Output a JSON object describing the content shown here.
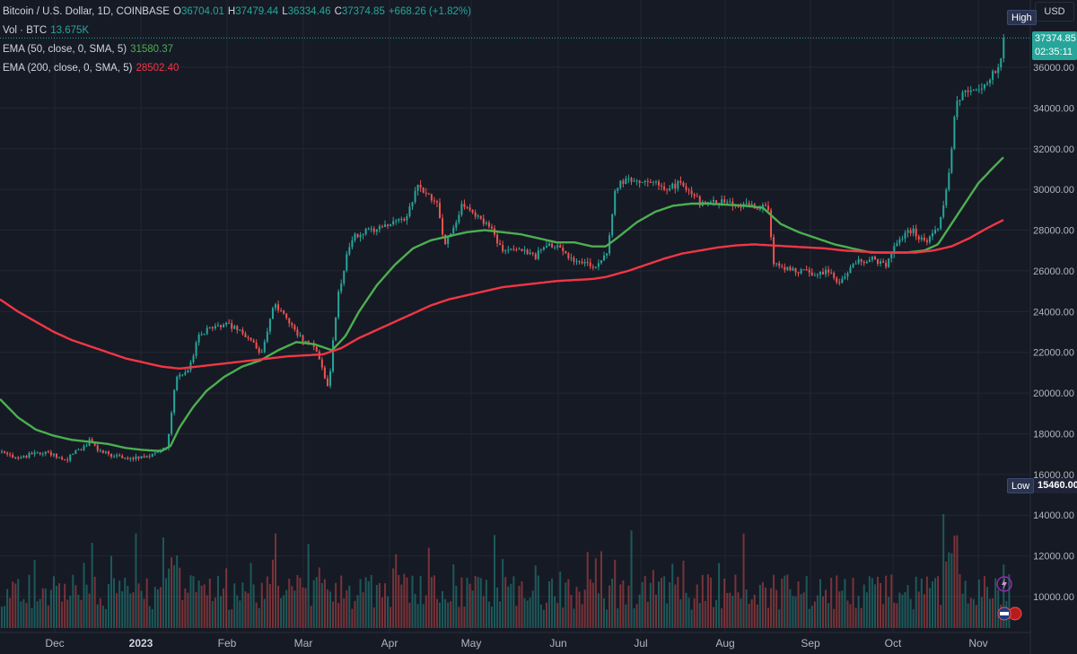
{
  "legend": {
    "symbol": "Bitcoin / U.S. Dollar, 1D, COINBASE",
    "o_key": "O",
    "o_val": "36704.01",
    "h_key": "H",
    "h_val": "37479.44",
    "l_key": "L",
    "l_val": "36334.46",
    "c_key": "C",
    "c_val": "37374.85",
    "change": "+668.26 (+1.82%)",
    "vol_label": "Vol · BTC",
    "vol_val": "13.675K",
    "ema50_label": "EMA (50, close, 0, SMA, 5)",
    "ema50_val": "31580.37",
    "ema200_label": "EMA (200, close, 0, SMA, 5)",
    "ema200_val": "28502.40"
  },
  "currency": "USD",
  "tags": {
    "high": "High",
    "low": "Low",
    "low_value": "15460.00",
    "last_price": "37374.85",
    "countdown": "02:35:11"
  },
  "colors": {
    "background": "#161a25",
    "up": "#26a69a",
    "down": "#ef5350",
    "ema50": "#4caf50",
    "ema200": "#f23645",
    "grid": "#232733"
  },
  "chart_data": {
    "type": "candlestick",
    "title": "Bitcoin / U.S. Dollar, 1D, COINBASE",
    "y_ticks": [
      10000,
      12000,
      14000,
      16000,
      18000,
      20000,
      22000,
      24000,
      26000,
      28000,
      30000,
      32000,
      34000,
      36000
    ],
    "y_tick_labels": [
      "10000.00",
      "12000.00",
      "14000.00",
      "16000.00",
      "18000.00",
      "20000.00",
      "22000.00",
      "24000.00",
      "26000.00",
      "28000.00",
      "30000.00",
      "32000.00",
      "34000.00",
      "36000.00"
    ],
    "ylim": [
      8600,
      38100
    ],
    "x_labels": [
      "Dec",
      "2023",
      "Feb",
      "Mar",
      "Apr",
      "May",
      "Jun",
      "Jul",
      "Aug",
      "Sep",
      "Oct",
      "Nov"
    ],
    "x_label_bold": "2023",
    "price_keypoints": [
      [
        0,
        17100
      ],
      [
        10,
        16900
      ],
      [
        20,
        16700
      ],
      [
        30,
        16950
      ],
      [
        40,
        17000
      ],
      [
        50,
        17100
      ],
      [
        60,
        16900
      ],
      [
        70,
        16600
      ],
      [
        80,
        17000
      ],
      [
        90,
        17300
      ],
      [
        100,
        17700
      ],
      [
        110,
        17100
      ],
      [
        130,
        16900
      ],
      [
        150,
        16800
      ],
      [
        170,
        17000
      ],
      [
        185,
        17400
      ],
      [
        195,
        20800
      ],
      [
        210,
        21200
      ],
      [
        220,
        22800
      ],
      [
        240,
        23400
      ],
      [
        255,
        23300
      ],
      [
        275,
        22800
      ],
      [
        290,
        21800
      ],
      [
        305,
        24400
      ],
      [
        320,
        23600
      ],
      [
        335,
        22600
      ],
      [
        350,
        22200
      ],
      [
        365,
        20200
      ],
      [
        375,
        24700
      ],
      [
        390,
        27600
      ],
      [
        410,
        28000
      ],
      [
        430,
        28300
      ],
      [
        450,
        28500
      ],
      [
        465,
        30200
      ],
      [
        485,
        29400
      ],
      [
        495,
        27300
      ],
      [
        515,
        29300
      ],
      [
        530,
        28700
      ],
      [
        545,
        28200
      ],
      [
        560,
        26900
      ],
      [
        575,
        27000
      ],
      [
        595,
        26700
      ],
      [
        610,
        27300
      ],
      [
        625,
        27000
      ],
      [
        640,
        26400
      ],
      [
        660,
        26200
      ],
      [
        675,
        26700
      ],
      [
        685,
        30200
      ],
      [
        700,
        30500
      ],
      [
        720,
        30400
      ],
      [
        740,
        30100
      ],
      [
        760,
        30300
      ],
      [
        780,
        29300
      ],
      [
        800,
        29400
      ],
      [
        820,
        29300
      ],
      [
        840,
        29200
      ],
      [
        855,
        29100
      ],
      [
        860,
        26500
      ],
      [
        875,
        26100
      ],
      [
        890,
        26000
      ],
      [
        905,
        25900
      ],
      [
        920,
        26000
      ],
      [
        935,
        25400
      ],
      [
        950,
        26400
      ],
      [
        970,
        26600
      ],
      [
        985,
        26200
      ],
      [
        1000,
        27600
      ],
      [
        1015,
        28000
      ],
      [
        1030,
        27400
      ],
      [
        1045,
        28200
      ],
      [
        1055,
        30200
      ],
      [
        1065,
        34500
      ],
      [
        1080,
        34800
      ],
      [
        1095,
        35200
      ],
      [
        1110,
        35800
      ],
      [
        1118,
        37400
      ]
    ],
    "ema50_keypoints": [
      [
        0,
        19700
      ],
      [
        20,
        18800
      ],
      [
        40,
        18200
      ],
      [
        60,
        17900
      ],
      [
        80,
        17700
      ],
      [
        100,
        17600
      ],
      [
        120,
        17500
      ],
      [
        140,
        17300
      ],
      [
        160,
        17200
      ],
      [
        180,
        17150
      ],
      [
        190,
        17400
      ],
      [
        200,
        18300
      ],
      [
        215,
        19300
      ],
      [
        230,
        20100
      ],
      [
        250,
        20800
      ],
      [
        270,
        21300
      ],
      [
        290,
        21600
      ],
      [
        310,
        22100
      ],
      [
        330,
        22500
      ],
      [
        350,
        22400
      ],
      [
        370,
        22100
      ],
      [
        385,
        22800
      ],
      [
        400,
        24000
      ],
      [
        420,
        25300
      ],
      [
        440,
        26300
      ],
      [
        460,
        27100
      ],
      [
        480,
        27500
      ],
      [
        500,
        27700
      ],
      [
        520,
        27900
      ],
      [
        540,
        28000
      ],
      [
        560,
        27900
      ],
      [
        580,
        27800
      ],
      [
        600,
        27600
      ],
      [
        620,
        27400
      ],
      [
        640,
        27400
      ],
      [
        660,
        27200
      ],
      [
        675,
        27200
      ],
      [
        690,
        27700
      ],
      [
        710,
        28400
      ],
      [
        730,
        28900
      ],
      [
        750,
        29200
      ],
      [
        770,
        29300
      ],
      [
        790,
        29300
      ],
      [
        810,
        29250
      ],
      [
        830,
        29200
      ],
      [
        850,
        29100
      ],
      [
        870,
        28300
      ],
      [
        890,
        27900
      ],
      [
        910,
        27600
      ],
      [
        930,
        27300
      ],
      [
        950,
        27100
      ],
      [
        970,
        26900
      ],
      [
        990,
        26900
      ],
      [
        1010,
        26900
      ],
      [
        1030,
        27000
      ],
      [
        1045,
        27300
      ],
      [
        1060,
        28300
      ],
      [
        1075,
        29300
      ],
      [
        1090,
        30300
      ],
      [
        1105,
        31000
      ],
      [
        1118,
        31580
      ]
    ],
    "ema200_keypoints": [
      [
        0,
        24600
      ],
      [
        20,
        24000
      ],
      [
        40,
        23500
      ],
      [
        60,
        23000
      ],
      [
        80,
        22600
      ],
      [
        100,
        22300
      ],
      [
        120,
        22000
      ],
      [
        140,
        21700
      ],
      [
        160,
        21500
      ],
      [
        180,
        21300
      ],
      [
        200,
        21200
      ],
      [
        220,
        21300
      ],
      [
        240,
        21400
      ],
      [
        260,
        21500
      ],
      [
        280,
        21600
      ],
      [
        300,
        21700
      ],
      [
        320,
        21800
      ],
      [
        340,
        21850
      ],
      [
        360,
        21900
      ],
      [
        380,
        22200
      ],
      [
        400,
        22700
      ],
      [
        420,
        23100
      ],
      [
        440,
        23500
      ],
      [
        460,
        23900
      ],
      [
        480,
        24300
      ],
      [
        500,
        24600
      ],
      [
        520,
        24800
      ],
      [
        540,
        25000
      ],
      [
        560,
        25200
      ],
      [
        580,
        25300
      ],
      [
        600,
        25400
      ],
      [
        620,
        25500
      ],
      [
        640,
        25550
      ],
      [
        660,
        25600
      ],
      [
        675,
        25700
      ],
      [
        700,
        26000
      ],
      [
        720,
        26300
      ],
      [
        740,
        26600
      ],
      [
        760,
        26850
      ],
      [
        780,
        27000
      ],
      [
        800,
        27150
      ],
      [
        820,
        27250
      ],
      [
        840,
        27300
      ],
      [
        860,
        27250
      ],
      [
        880,
        27200
      ],
      [
        900,
        27150
      ],
      [
        920,
        27100
      ],
      [
        940,
        27000
      ],
      [
        960,
        26950
      ],
      [
        980,
        26900
      ],
      [
        1000,
        26900
      ],
      [
        1020,
        26900
      ],
      [
        1040,
        27000
      ],
      [
        1060,
        27200
      ],
      [
        1080,
        27600
      ],
      [
        1100,
        28100
      ],
      [
        1118,
        28500
      ]
    ],
    "last_price": 37374.85,
    "high_price": 37479.44,
    "low_price": 15460.0,
    "grid": true
  }
}
